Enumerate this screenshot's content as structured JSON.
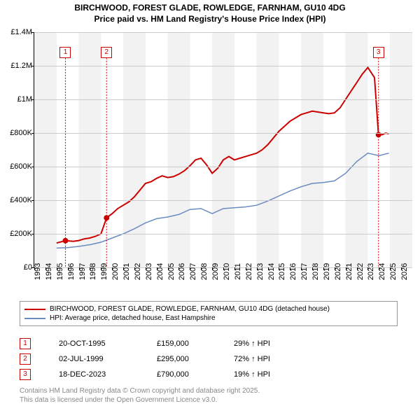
{
  "title_line1": "BIRCHWOOD, FOREST GLADE, ROWLEDGE, FARNHAM, GU10 4DG",
  "title_line2": "Price paid vs. HM Land Registry's House Price Index (HPI)",
  "chart": {
    "type": "line",
    "background_stripe_light": "#ffffff",
    "background_stripe_dark": "#f2f2f2",
    "grid_color": "#cccccc",
    "x_min": 1993,
    "x_max": 2027,
    "x_ticks": [
      1993,
      1994,
      1995,
      1996,
      1997,
      1998,
      1999,
      2000,
      2001,
      2002,
      2003,
      2004,
      2005,
      2006,
      2007,
      2008,
      2009,
      2010,
      2011,
      2012,
      2013,
      2014,
      2015,
      2016,
      2017,
      2018,
      2019,
      2020,
      2021,
      2022,
      2023,
      2024,
      2025,
      2026
    ],
    "y_min": 0,
    "y_max": 1400000,
    "y_ticks": [
      {
        "v": 0,
        "label": "£0"
      },
      {
        "v": 200000,
        "label": "£200K"
      },
      {
        "v": 400000,
        "label": "£400K"
      },
      {
        "v": 600000,
        "label": "£600K"
      },
      {
        "v": 800000,
        "label": "£800K"
      },
      {
        "v": 1000000,
        "label": "£1M"
      },
      {
        "v": 1200000,
        "label": "£1.2M"
      },
      {
        "v": 1400000,
        "label": "£1.4M"
      }
    ],
    "series": [
      {
        "name": "BIRCHWOOD, FOREST GLADE, ROWLEDGE, FARNHAM, GU10 4DG (detached house)",
        "color": "#cc0000",
        "width": 2,
        "points": [
          [
            1995.0,
            145000
          ],
          [
            1995.8,
            159000
          ],
          [
            1996.5,
            155000
          ],
          [
            1997.0,
            160000
          ],
          [
            1997.5,
            170000
          ],
          [
            1998.0,
            175000
          ],
          [
            1998.5,
            185000
          ],
          [
            1999.0,
            200000
          ],
          [
            1999.5,
            295000
          ],
          [
            2000.0,
            320000
          ],
          [
            2000.5,
            350000
          ],
          [
            2001.0,
            370000
          ],
          [
            2001.5,
            390000
          ],
          [
            2002.0,
            420000
          ],
          [
            2002.5,
            460000
          ],
          [
            2003.0,
            500000
          ],
          [
            2003.5,
            510000
          ],
          [
            2004.0,
            530000
          ],
          [
            2004.5,
            545000
          ],
          [
            2005.0,
            535000
          ],
          [
            2005.5,
            540000
          ],
          [
            2006.0,
            555000
          ],
          [
            2006.5,
            575000
          ],
          [
            2007.0,
            605000
          ],
          [
            2007.5,
            640000
          ],
          [
            2008.0,
            650000
          ],
          [
            2008.5,
            610000
          ],
          [
            2009.0,
            560000
          ],
          [
            2009.5,
            590000
          ],
          [
            2010.0,
            640000
          ],
          [
            2010.5,
            660000
          ],
          [
            2011.0,
            640000
          ],
          [
            2011.5,
            650000
          ],
          [
            2012.0,
            660000
          ],
          [
            2012.5,
            670000
          ],
          [
            2013.0,
            680000
          ],
          [
            2013.5,
            700000
          ],
          [
            2014.0,
            730000
          ],
          [
            2014.5,
            770000
          ],
          [
            2015.0,
            810000
          ],
          [
            2015.5,
            840000
          ],
          [
            2016.0,
            870000
          ],
          [
            2016.5,
            890000
          ],
          [
            2017.0,
            910000
          ],
          [
            2017.5,
            920000
          ],
          [
            2018.0,
            930000
          ],
          [
            2018.5,
            925000
          ],
          [
            2019.0,
            920000
          ],
          [
            2019.5,
            915000
          ],
          [
            2020.0,
            920000
          ],
          [
            2020.5,
            950000
          ],
          [
            2021.0,
            1000000
          ],
          [
            2021.5,
            1050000
          ],
          [
            2022.0,
            1100000
          ],
          [
            2022.5,
            1150000
          ],
          [
            2023.0,
            1190000
          ],
          [
            2023.3,
            1160000
          ],
          [
            2023.6,
            1130000
          ],
          [
            2023.96,
            790000
          ],
          [
            2024.3,
            790000
          ],
          [
            2024.6,
            800000
          ],
          [
            2024.9,
            795000
          ]
        ]
      },
      {
        "name": "HPI: Average price, detached house, East Hampshire",
        "color": "#6a8bc0",
        "width": 1.5,
        "points": [
          [
            1995.0,
            115000
          ],
          [
            1996.0,
            118000
          ],
          [
            1997.0,
            125000
          ],
          [
            1998.0,
            135000
          ],
          [
            1999.0,
            150000
          ],
          [
            2000.0,
            175000
          ],
          [
            2001.0,
            200000
          ],
          [
            2002.0,
            230000
          ],
          [
            2003.0,
            265000
          ],
          [
            2004.0,
            290000
          ],
          [
            2005.0,
            300000
          ],
          [
            2006.0,
            315000
          ],
          [
            2007.0,
            345000
          ],
          [
            2008.0,
            350000
          ],
          [
            2009.0,
            320000
          ],
          [
            2010.0,
            350000
          ],
          [
            2011.0,
            355000
          ],
          [
            2012.0,
            360000
          ],
          [
            2013.0,
            370000
          ],
          [
            2014.0,
            395000
          ],
          [
            2015.0,
            425000
          ],
          [
            2016.0,
            455000
          ],
          [
            2017.0,
            480000
          ],
          [
            2018.0,
            500000
          ],
          [
            2019.0,
            505000
          ],
          [
            2020.0,
            515000
          ],
          [
            2021.0,
            560000
          ],
          [
            2022.0,
            630000
          ],
          [
            2023.0,
            680000
          ],
          [
            2024.0,
            665000
          ],
          [
            2024.9,
            680000
          ]
        ]
      }
    ],
    "markers": [
      {
        "n": "1",
        "x": 1995.8,
        "y": 159000,
        "color": "#cc0000"
      },
      {
        "n": "2",
        "x": 1999.5,
        "y": 295000,
        "color": "#cc0000"
      },
      {
        "n": "3",
        "x": 2023.96,
        "y": 790000,
        "color": "#cc0000"
      }
    ],
    "marker_callouts": [
      {
        "n": "1",
        "x": 1995.8,
        "top_y": 1280000,
        "color": "#cc0000"
      },
      {
        "n": "2",
        "x": 1999.5,
        "top_y": 1280000,
        "color": "#cc0000"
      },
      {
        "n": "3",
        "x": 2023.96,
        "top_y": 1280000,
        "color": "#cc0000"
      }
    ]
  },
  "legend": {
    "items": [
      {
        "color": "#cc0000",
        "label": "BIRCHWOOD, FOREST GLADE, ROWLEDGE, FARNHAM, GU10 4DG (detached house)"
      },
      {
        "color": "#6a8bc0",
        "label": "HPI: Average price, detached house, East Hampshire"
      }
    ]
  },
  "sales": [
    {
      "n": "1",
      "color": "#cc0000",
      "date": "20-OCT-1995",
      "price": "£159,000",
      "pct": "29% ↑ HPI"
    },
    {
      "n": "2",
      "color": "#cc0000",
      "date": "02-JUL-1999",
      "price": "£295,000",
      "pct": "72% ↑ HPI"
    },
    {
      "n": "3",
      "color": "#cc0000",
      "date": "18-DEC-2023",
      "price": "£790,000",
      "pct": "19% ↑ HPI"
    }
  ],
  "footer_line1": "Contains HM Land Registry data © Crown copyright and database right 2025.",
  "footer_line2": "This data is licensed under the Open Government Licence v3.0."
}
